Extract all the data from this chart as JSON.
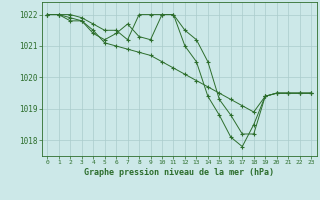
{
  "title": "Graphe pression niveau de la mer (hPa)",
  "bg_color": "#cce8e8",
  "grid_color": "#aacccc",
  "line_color": "#2d6e2d",
  "marker_color": "#2d6e2d",
  "xlim": [
    -0.5,
    23.5
  ],
  "ylim": [
    1017.5,
    1022.4
  ],
  "yticks": [
    1018,
    1019,
    1020,
    1021,
    1022
  ],
  "xticks": [
    0,
    1,
    2,
    3,
    4,
    5,
    6,
    7,
    8,
    9,
    10,
    11,
    12,
    13,
    14,
    15,
    16,
    17,
    18,
    19,
    20,
    21,
    22,
    23
  ],
  "series": [
    [
      1022.0,
      1022.0,
      1021.8,
      1021.8,
      1021.5,
      1021.1,
      1021.0,
      1020.9,
      1020.8,
      1020.7,
      1020.5,
      1020.3,
      1020.1,
      1019.9,
      1019.7,
      1019.5,
      1019.3,
      1019.1,
      1018.9,
      1019.4,
      1019.5,
      1019.5,
      1019.5,
      1019.5
    ],
    [
      1022.0,
      1022.0,
      1022.0,
      1021.9,
      1021.7,
      1021.5,
      1021.5,
      1021.2,
      1022.0,
      1022.0,
      1022.0,
      1022.0,
      1021.5,
      1021.2,
      1020.5,
      1019.3,
      1018.8,
      1018.2,
      1018.2,
      1019.4,
      1019.5,
      1019.5,
      1019.5,
      1019.5
    ],
    [
      1022.0,
      1022.0,
      1021.9,
      1021.8,
      1021.4,
      1021.2,
      1021.4,
      1021.7,
      1021.3,
      1021.2,
      1022.0,
      1022.0,
      1021.0,
      1020.5,
      1019.4,
      1018.8,
      1018.1,
      1017.8,
      1018.5,
      1019.4,
      1019.5,
      1019.5,
      1019.5,
      1019.5
    ]
  ]
}
